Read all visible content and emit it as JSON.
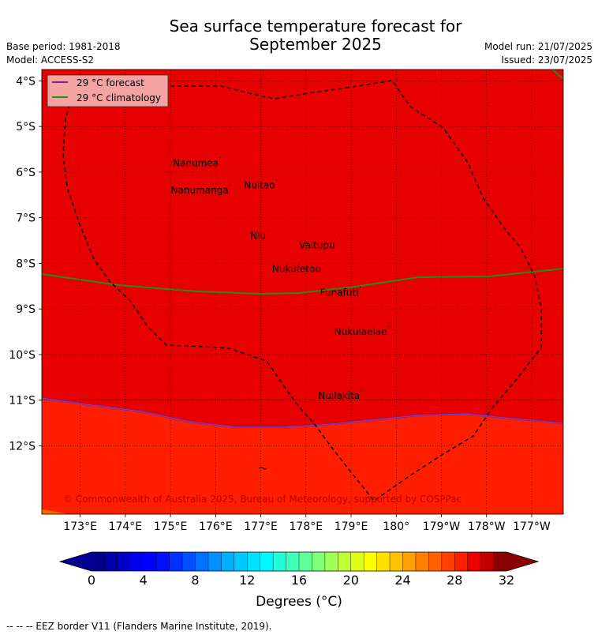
{
  "header": {
    "title_line1": "Sea surface temperature forecast for",
    "title_line2": "September 2025",
    "base_period": "Base period: 1981-2018",
    "model": "Model: ACCESS-S2",
    "model_run": "Model run: 21/07/2025",
    "issued": "Issued: 23/07/2025"
  },
  "map": {
    "lat_labels": [
      "4°S",
      "5°S",
      "6°S",
      "7°S",
      "8°S",
      "9°S",
      "10°S",
      "11°S",
      "12°S"
    ],
    "lat_values": [
      -4,
      -5,
      -6,
      -7,
      -8,
      -9,
      -10,
      -11,
      -12
    ],
    "lon_labels": [
      "173°E",
      "174°E",
      "175°E",
      "176°E",
      "177°E",
      "178°E",
      "179°E",
      "180°",
      "179°W",
      "178°W",
      "177°W"
    ],
    "lon_values": [
      173,
      174,
      175,
      176,
      177,
      178,
      179,
      180,
      181,
      182,
      183
    ],
    "lon_range": [
      172.15,
      183.7
    ],
    "lat_range": [
      -3.75,
      -13.5
    ],
    "places": [
      {
        "name": "Nanumea",
        "lon": 176.1,
        "lat": -5.68
      },
      {
        "name": "Nuitao",
        "lon": 177.35,
        "lat": -6.17
      },
      {
        "name": "Nanumanga",
        "lon": 176.32,
        "lat": -6.28
      },
      {
        "name": "Niu",
        "lon": 177.15,
        "lat": -7.27
      },
      {
        "name": "Vaitupu",
        "lon": 178.68,
        "lat": -7.48
      },
      {
        "name": "Nukufetau",
        "lon": 178.37,
        "lat": -8.0
      },
      {
        "name": "Funafuti",
        "lon": 179.2,
        "lat": -8.52
      },
      {
        "name": "Nukulaelae",
        "lon": 179.83,
        "lat": -9.38
      },
      {
        "name": "Nuilakita",
        "lon": 179.23,
        "lat": -10.78
      }
    ],
    "legend": [
      "29 °C  forecast",
      "29 °C  climatology"
    ],
    "copyright": "© Commonwealth of Australia 2025, Bureau of Meteorology, supported by COSPPac",
    "colors": {
      "warm_region": "#e60000",
      "cooler_region": "#ff1e00",
      "forecast_line": "#8b1a8b",
      "climatology_line": "#228b22",
      "eez_line": "#000000",
      "legend_bg": "#f4a3a3"
    }
  },
  "colorbar": {
    "tick_labels": [
      "0",
      "4",
      "8",
      "12",
      "16",
      "20",
      "24",
      "28",
      "32"
    ],
    "tick_values": [
      0,
      4,
      8,
      12,
      16,
      20,
      24,
      28,
      32
    ],
    "range": [
      0,
      32
    ],
    "title": "Degrees (°C)",
    "colors": [
      "#00008b",
      "#0000a6",
      "#0000c9",
      "#0000ea",
      "#0000ff",
      "#0010ff",
      "#0030ff",
      "#0050ff",
      "#0070ff",
      "#0090ff",
      "#00b0ff",
      "#00c8ff",
      "#00e0ff",
      "#00f8ff",
      "#20ffd8",
      "#40ffb8",
      "#60ff98",
      "#80ff78",
      "#a0ff58",
      "#c0ff38",
      "#e0ff18",
      "#ffff00",
      "#ffe000",
      "#ffc000",
      "#ffa000",
      "#ff8000",
      "#ff6000",
      "#ff4000",
      "#ff2000",
      "#e60000",
      "#c00000",
      "#8b0000"
    ]
  },
  "footnote": "-- -- -- EEZ border V11 (Flanders Marine Institute, 2019)."
}
